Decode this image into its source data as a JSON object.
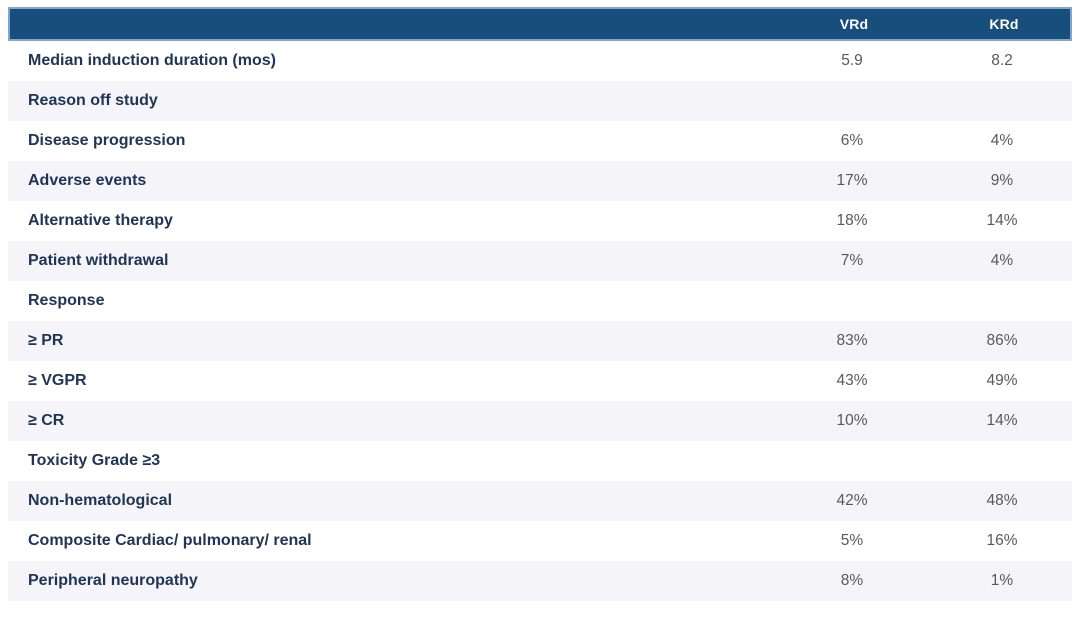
{
  "chart_data": {
    "type": "table",
    "columns": [
      "",
      "VRd",
      "KRd"
    ],
    "rows": [
      [
        "Median induction duration (mos)",
        "5.9",
        "8.2"
      ],
      [
        "Reason off study",
        "",
        ""
      ],
      [
        "Disease progression",
        "6%",
        "4%"
      ],
      [
        "Adverse events",
        "17%",
        "9%"
      ],
      [
        "Alternative therapy",
        "18%",
        "14%"
      ],
      [
        "Patient withdrawal",
        "7%",
        "4%"
      ],
      [
        "Response",
        "",
        ""
      ],
      [
        "≥ PR",
        "83%",
        "86%"
      ],
      [
        "≥ VGPR",
        "43%",
        "49%"
      ],
      [
        "≥ CR",
        "10%",
        "14%"
      ],
      [
        "Toxicity Grade ≥3",
        "",
        ""
      ],
      [
        "Non-hematological",
        "42%",
        "48%"
      ],
      [
        "Composite Cardiac/ pulmonary/ renal",
        "5%",
        "16%"
      ],
      [
        "Peripheral neuropathy",
        "8%",
        "1%"
      ]
    ]
  },
  "table": {
    "header": {
      "vrd": "VRd",
      "krd": "KRd"
    },
    "rows": [
      {
        "label": "Median induction duration (mos)",
        "vrd": "5.9",
        "krd": "8.2"
      },
      {
        "label": "Reason off study",
        "vrd": "",
        "krd": ""
      },
      {
        "label": "Disease progression",
        "vrd": "6%",
        "krd": "4%"
      },
      {
        "label": "Adverse events",
        "vrd": "17%",
        "krd": "9%"
      },
      {
        "label": "Alternative therapy",
        "vrd": "18%",
        "krd": "14%"
      },
      {
        "label": "Patient withdrawal",
        "vrd": "7%",
        "krd": "4%"
      },
      {
        "label": "Response",
        "vrd": "",
        "krd": ""
      },
      {
        "label": "≥ PR",
        "vrd": "83%",
        "krd": "86%"
      },
      {
        "label": "≥ VGPR",
        "vrd": "43%",
        "krd": "49%"
      },
      {
        "label": "≥ CR",
        "vrd": "10%",
        "krd": "14%"
      },
      {
        "label": "Toxicity Grade ≥3",
        "vrd": "",
        "krd": ""
      },
      {
        "label": "Non-hematological",
        "vrd": "42%",
        "krd": "48%"
      },
      {
        "label": "Composite Cardiac/ pulmonary/ renal",
        "vrd": "5%",
        "krd": "16%"
      },
      {
        "label": "Peripheral neuropathy",
        "vrd": "8%",
        "krd": "1%"
      }
    ]
  },
  "colors": {
    "header_bg": "#174e7c",
    "header_border": "#7ea6ce",
    "header_text": "#ffffff",
    "stripe_bg": "#f4f4f9",
    "label_text": "#203555",
    "value_text": "#595959"
  }
}
